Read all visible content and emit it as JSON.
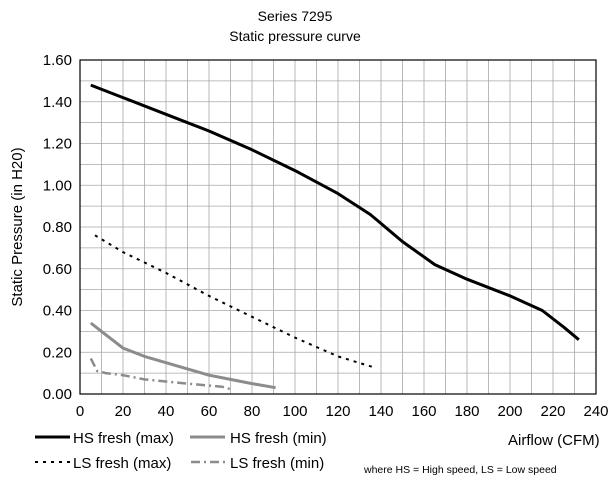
{
  "chart_data": {
    "type": "line",
    "title": "Series 7295",
    "subtitle": "Static pressure curve",
    "xlabel": "Airflow (CFM)",
    "ylabel": "Static Pressure (in H20)",
    "xlim": [
      0,
      240
    ],
    "ylim": [
      0,
      1.6
    ],
    "xticks": [
      "0",
      "20",
      "40",
      "60",
      "80",
      "100",
      "120",
      "140",
      "160",
      "180",
      "200",
      "220",
      "240"
    ],
    "yticks": [
      "0.00",
      "0.20",
      "0.40",
      "0.60",
      "0.80",
      "1.00",
      "1.20",
      "1.40",
      "1.60"
    ],
    "grid": true,
    "legend_position": "bottom",
    "note": "where HS = High speed, LS = Low speed",
    "series": [
      {
        "name": "HS fresh (max)",
        "color": "#000000",
        "style": "solid",
        "points": [
          [
            5,
            1.48
          ],
          [
            20,
            1.42
          ],
          [
            40,
            1.34
          ],
          [
            60,
            1.26
          ],
          [
            80,
            1.17
          ],
          [
            100,
            1.07
          ],
          [
            120,
            0.96
          ],
          [
            135,
            0.86
          ],
          [
            150,
            0.73
          ],
          [
            165,
            0.62
          ],
          [
            180,
            0.55
          ],
          [
            200,
            0.47
          ],
          [
            215,
            0.4
          ],
          [
            225,
            0.32
          ],
          [
            232,
            0.26
          ]
        ]
      },
      {
        "name": "HS fresh (min)",
        "color": "#8c8c8c",
        "style": "solid",
        "points": [
          [
            5,
            0.34
          ],
          [
            10,
            0.3
          ],
          [
            20,
            0.22
          ],
          [
            30,
            0.18
          ],
          [
            40,
            0.15
          ],
          [
            50,
            0.12
          ],
          [
            60,
            0.09
          ],
          [
            70,
            0.07
          ],
          [
            80,
            0.05
          ],
          [
            91,
            0.03
          ]
        ]
      },
      {
        "name": "LS fresh (max)",
        "color": "#000000",
        "style": "dotted",
        "points": [
          [
            7,
            0.76
          ],
          [
            20,
            0.68
          ],
          [
            40,
            0.58
          ],
          [
            60,
            0.47
          ],
          [
            80,
            0.37
          ],
          [
            100,
            0.27
          ],
          [
            120,
            0.18
          ],
          [
            136,
            0.13
          ]
        ]
      },
      {
        "name": "LS fresh (min)",
        "color": "#8c8c8c",
        "style": "dashdot",
        "points": [
          [
            5,
            0.17
          ],
          [
            8,
            0.11
          ],
          [
            12,
            0.1
          ],
          [
            20,
            0.09
          ],
          [
            30,
            0.07
          ],
          [
            40,
            0.06
          ],
          [
            50,
            0.05
          ],
          [
            60,
            0.04
          ],
          [
            66,
            0.035
          ],
          [
            71,
            0.02
          ]
        ]
      }
    ]
  }
}
